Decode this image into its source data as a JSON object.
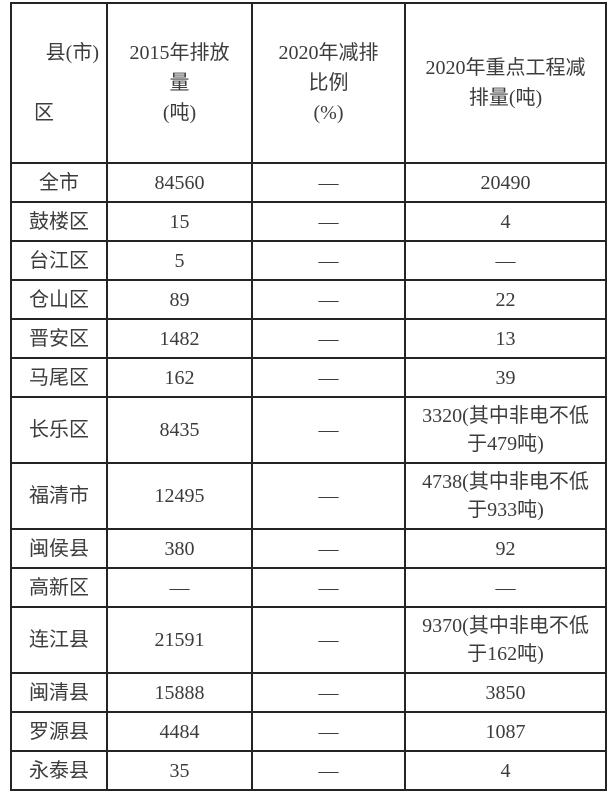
{
  "colors": {
    "background": "#ffffff",
    "border": "#242424",
    "text": "#3c3c3c"
  },
  "table": {
    "columns": [
      {
        "id": "region",
        "label": "县(市)区",
        "display_lines": [
          "县(市)",
          "区"
        ]
      },
      {
        "id": "emission_2015_tons",
        "label": "2015年排放量(吨)",
        "display": "2015年排放\n量\n(吨)"
      },
      {
        "id": "reduction_ratio_2020_pct",
        "label": "2020年减排比例(%)",
        "display": "2020年减排\n比例\n(%)"
      },
      {
        "id": "key_project_reduction_2020_tons",
        "label": "2020年重点工程减排量(吨)",
        "display": "2020年重点工程减\n排量(吨)"
      }
    ],
    "rows": [
      {
        "region": "全市",
        "emission_2015_tons": "84560",
        "reduction_ratio_2020_pct": "—",
        "key_project_reduction_2020_tons": "20490"
      },
      {
        "region": "鼓楼区",
        "emission_2015_tons": "15",
        "reduction_ratio_2020_pct": "—",
        "key_project_reduction_2020_tons": "4"
      },
      {
        "region": "台江区",
        "emission_2015_tons": "5",
        "reduction_ratio_2020_pct": "—",
        "key_project_reduction_2020_tons": "—"
      },
      {
        "region": "仓山区",
        "emission_2015_tons": "89",
        "reduction_ratio_2020_pct": "—",
        "key_project_reduction_2020_tons": "22"
      },
      {
        "region": "晋安区",
        "emission_2015_tons": "1482",
        "reduction_ratio_2020_pct": "—",
        "key_project_reduction_2020_tons": "13"
      },
      {
        "region": "马尾区",
        "emission_2015_tons": "162",
        "reduction_ratio_2020_pct": "—",
        "key_project_reduction_2020_tons": "39"
      },
      {
        "region": "长乐区",
        "emission_2015_tons": "8435",
        "reduction_ratio_2020_pct": "—",
        "key_project_reduction_2020_tons": "3320(其中非电不低\n于479吨)"
      },
      {
        "region": "福清市",
        "emission_2015_tons": "12495",
        "reduction_ratio_2020_pct": "—",
        "key_project_reduction_2020_tons": "4738(其中非电不低\n于933吨)"
      },
      {
        "region": "闽侯县",
        "emission_2015_tons": "380",
        "reduction_ratio_2020_pct": "—",
        "key_project_reduction_2020_tons": "92"
      },
      {
        "region": "高新区",
        "emission_2015_tons": "—",
        "reduction_ratio_2020_pct": "—",
        "key_project_reduction_2020_tons": "—"
      },
      {
        "region": "连江县",
        "emission_2015_tons": "21591",
        "reduction_ratio_2020_pct": "—",
        "key_project_reduction_2020_tons": "9370(其中非电不低\n于162吨)"
      },
      {
        "region": "闽清县",
        "emission_2015_tons": "15888",
        "reduction_ratio_2020_pct": "—",
        "key_project_reduction_2020_tons": "3850"
      },
      {
        "region": "罗源县",
        "emission_2015_tons": "4484",
        "reduction_ratio_2020_pct": "—",
        "key_project_reduction_2020_tons": "1087"
      },
      {
        "region": "永泰县",
        "emission_2015_tons": "35",
        "reduction_ratio_2020_pct": "—",
        "key_project_reduction_2020_tons": "4"
      }
    ]
  }
}
